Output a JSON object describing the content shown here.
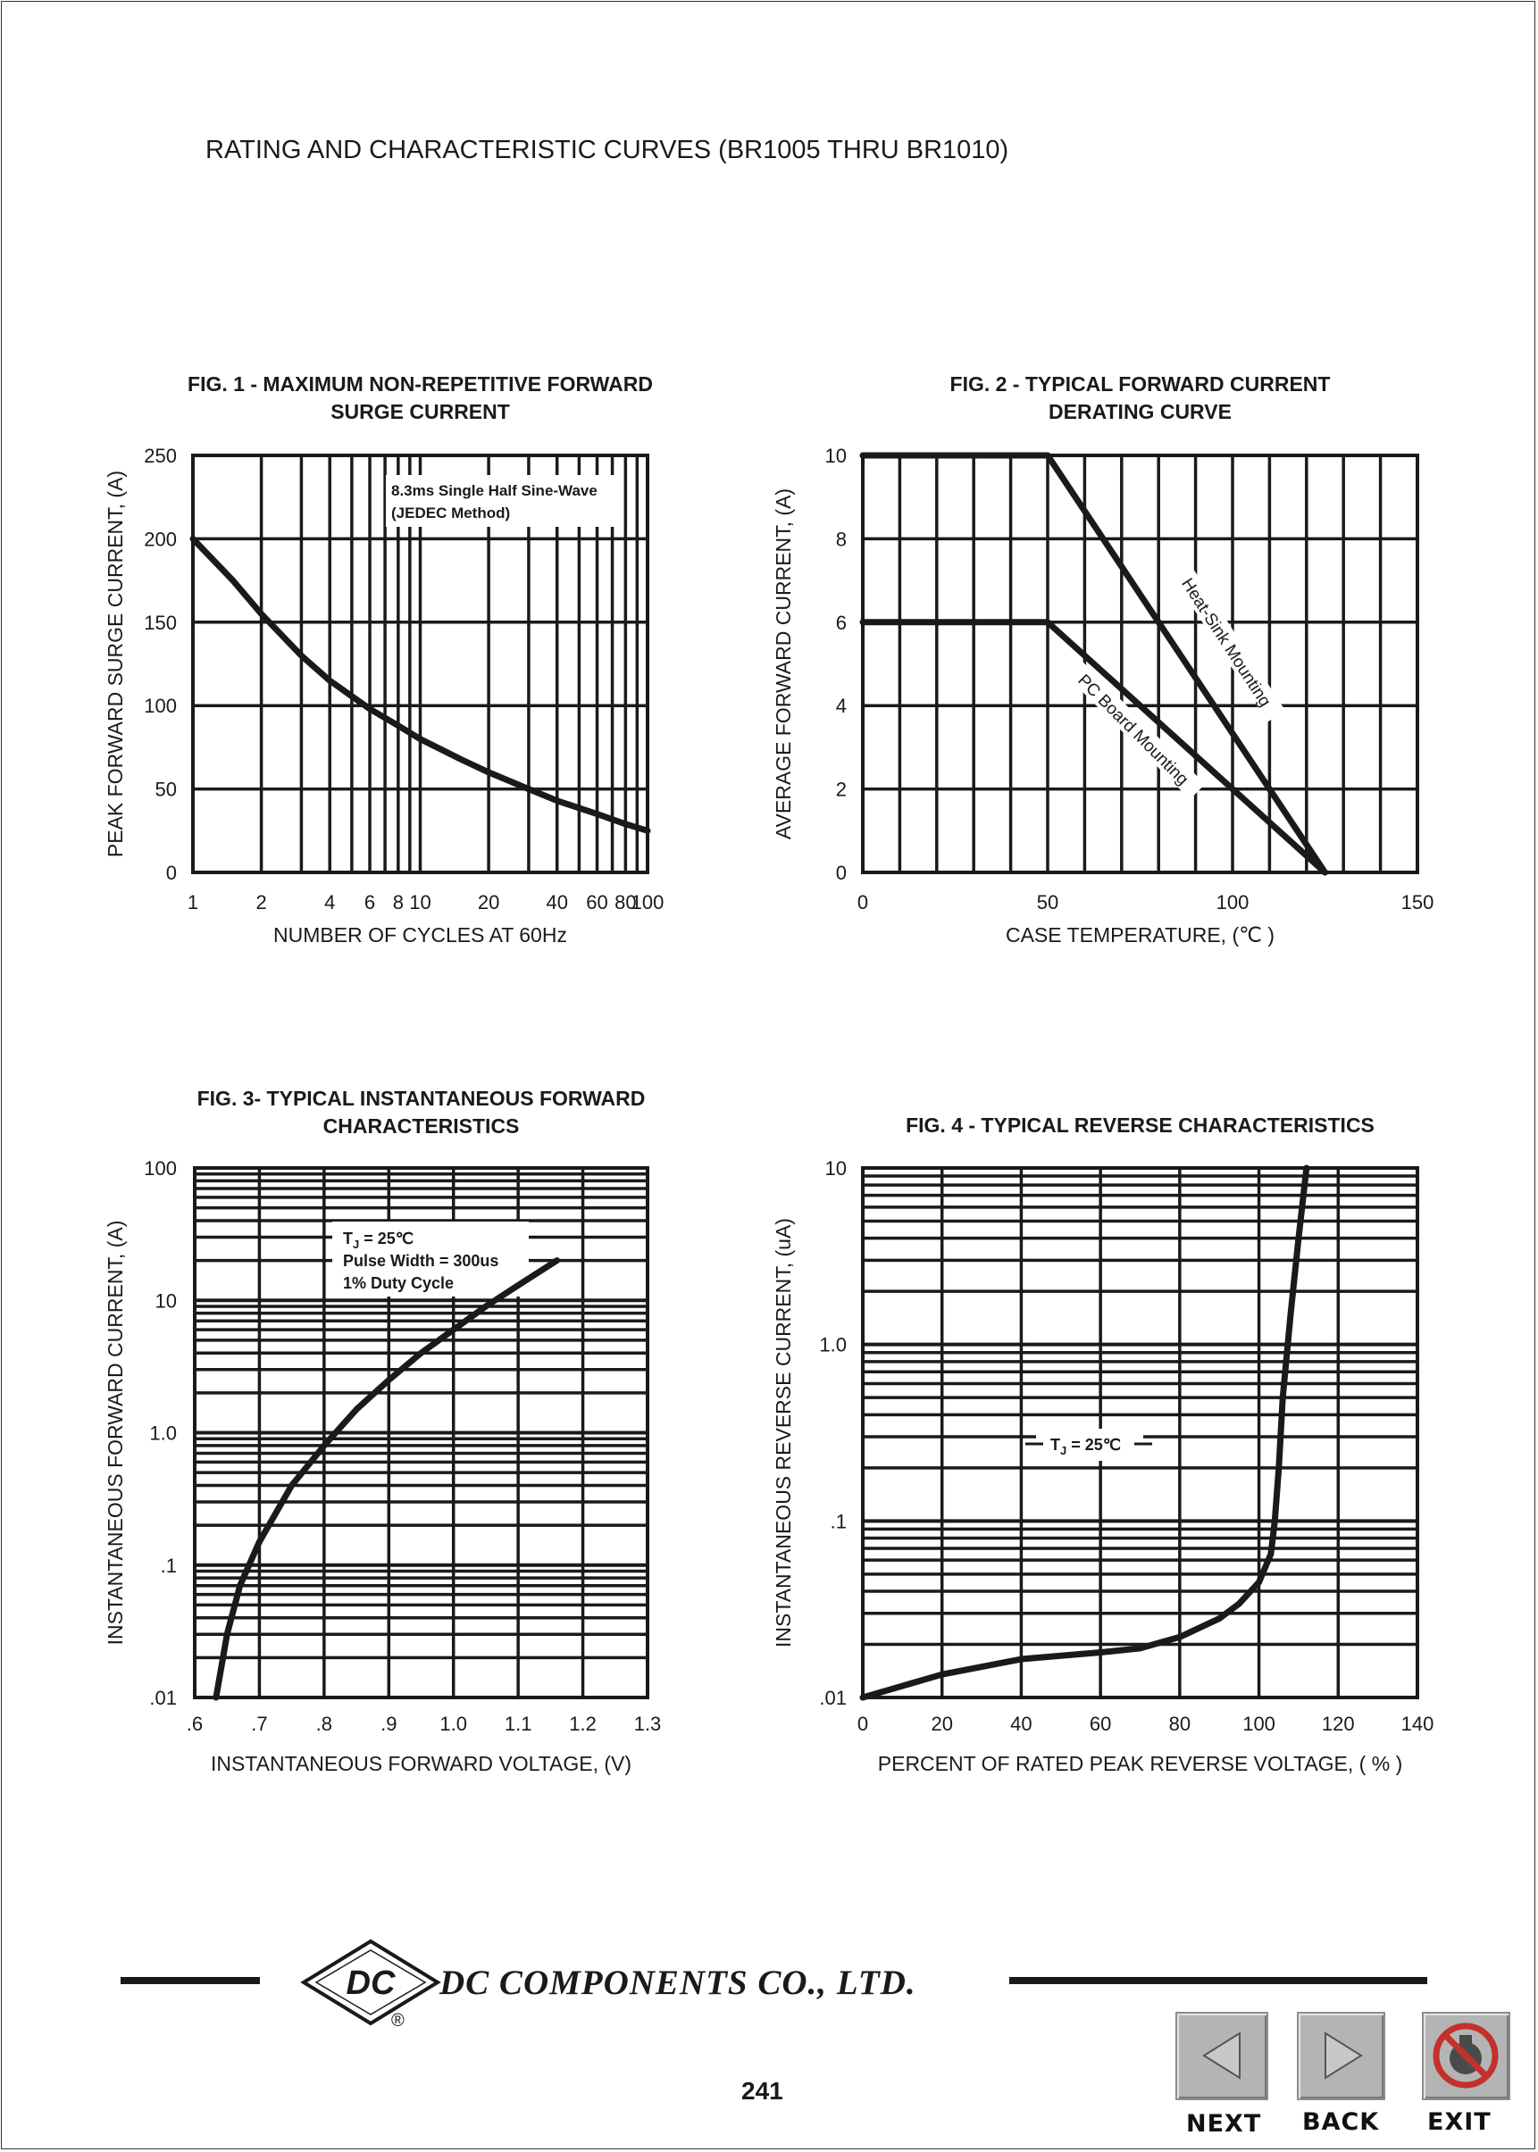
{
  "page": {
    "header": "RATING AND CHARACTERISTIC CURVES (BR1005 THRU BR1010)",
    "company": "DC COMPONENTS CO., LTD.",
    "logo_text": "DC",
    "registered_mark": "®",
    "page_number": "241"
  },
  "nav": {
    "next_label": "NEXT",
    "back_label": "BACK",
    "exit_label": "EXIT"
  },
  "colors": {
    "ink": "#1a1a1a",
    "button_face": "#b4b4b4",
    "exit_red": "#c4302b"
  },
  "icons": {
    "next": "left-triangle-icon",
    "back": "right-triangle-icon",
    "exit": "prohibited-icon"
  },
  "chart_data": [
    {
      "id": "fig1",
      "type": "line",
      "title": [
        "FIG. 1 - MAXIMUM NON-REPETITIVE FORWARD",
        "SURGE CURRENT"
      ],
      "xlabel": "NUMBER OF CYCLES AT 60Hz",
      "ylabel": "PEAK FORWARD SURGE CURRENT, (A)",
      "xscale": "log",
      "yscale": "linear",
      "xlim": [
        1,
        100
      ],
      "ylim": [
        0,
        250
      ],
      "xticks": [
        1,
        2,
        4,
        6,
        8,
        10,
        20,
        40,
        60,
        80,
        100
      ],
      "xtick_labels": [
        "1",
        "2",
        "4",
        "6",
        "8",
        "10",
        "20",
        "40",
        "60",
        "80",
        "100"
      ],
      "yticks": [
        0,
        50,
        100,
        150,
        200,
        250
      ],
      "ytick_labels": [
        "0",
        "50",
        "100",
        "150",
        "200",
        "250"
      ],
      "grid": true,
      "annotation": [
        "8.3ms Single Half Sine-Wave",
        "(JEDEC Method)"
      ],
      "series": [
        {
          "x": [
            1,
            1.5,
            2,
            3,
            4,
            6,
            8,
            10,
            15,
            20,
            30,
            40,
            60,
            80,
            100
          ],
          "y": [
            200,
            175,
            155,
            130,
            115,
            98,
            88,
            80,
            68,
            60,
            50,
            43,
            35,
            29,
            25
          ]
        }
      ]
    },
    {
      "id": "fig2",
      "type": "line",
      "title": [
        "FIG. 2 - TYPICAL FORWARD CURRENT",
        "DERATING CURVE"
      ],
      "xlabel": "CASE TEMPERATURE, (℃ )",
      "ylabel": "AVERAGE FORWARD  CURRENT, (A)",
      "xscale": "linear",
      "yscale": "linear",
      "xlim": [
        0,
        150
      ],
      "ylim": [
        0,
        10
      ],
      "xticks": [
        0,
        50,
        100,
        150
      ],
      "xtick_labels": [
        "0",
        "50",
        "100",
        "150"
      ],
      "yticks": [
        0,
        2,
        4,
        6,
        8,
        10
      ],
      "ytick_labels": [
        "0",
        "2",
        "4",
        "6",
        "8",
        "10"
      ],
      "grid": true,
      "series": [
        {
          "name": "Heat-Sink Mounting",
          "x": [
            0,
            50,
            125
          ],
          "y": [
            10,
            10,
            0
          ]
        },
        {
          "name": "PC Board Mounting",
          "x": [
            0,
            50,
            125
          ],
          "y": [
            6,
            6,
            0
          ]
        }
      ]
    },
    {
      "id": "fig3",
      "type": "line",
      "title": [
        "FIG. 3- TYPICAL INSTANTANEOUS FORWARD",
        "CHARACTERISTICS"
      ],
      "xlabel": "INSTANTANEOUS FORWARD VOLTAGE, (V)",
      "ylabel": "INSTANTANEOUS FORWARD CURRENT, (A)",
      "xscale": "linear",
      "yscale": "log",
      "xlim": [
        0.6,
        1.3
      ],
      "ylim": [
        0.01,
        100
      ],
      "xticks": [
        0.6,
        0.7,
        0.8,
        0.9,
        1.0,
        1.1,
        1.2,
        1.3
      ],
      "xtick_labels": [
        ".6",
        ".7",
        ".8",
        ".9",
        "1.0",
        "1.1",
        "1.2",
        "1.3"
      ],
      "yticks": [
        0.01,
        0.1,
        1,
        10,
        100
      ],
      "ytick_labels": [
        ".01",
        ".1",
        "1.0",
        "10",
        "100"
      ],
      "grid": true,
      "annotation": [
        "T",
        "J",
        " = 25℃",
        "Pulse Width = 300us",
        "1% Duty Cycle"
      ],
      "series": [
        {
          "x": [
            0.633,
            0.65,
            0.67,
            0.7,
            0.75,
            0.8,
            0.85,
            0.9,
            0.95,
            1.0,
            1.05,
            1.1,
            1.16
          ],
          "y": [
            0.01,
            0.03,
            0.07,
            0.15,
            0.4,
            0.8,
            1.5,
            2.5,
            4.0,
            6.0,
            9.0,
            13.0,
            20.0
          ]
        }
      ]
    },
    {
      "id": "fig4",
      "type": "line",
      "title": [
        "FIG. 4 - TYPICAL REVERSE CHARACTERISTICS"
      ],
      "xlabel": "PERCENT OF RATED PEAK REVERSE VOLTAGE, ( % )",
      "ylabel": "INSTANTANEOUS REVERSE CURRENT, (uA)",
      "xscale": "linear",
      "yscale": "log",
      "xlim": [
        0,
        140
      ],
      "ylim": [
        0.01,
        10
      ],
      "xticks": [
        0,
        20,
        40,
        60,
        80,
        100,
        120,
        140
      ],
      "xtick_labels": [
        "0",
        "20",
        "40",
        "60",
        "80",
        "100",
        "120",
        "140"
      ],
      "yticks": [
        0.01,
        0.1,
        1,
        10
      ],
      "ytick_labels": [
        ".01",
        ".1",
        "1.0",
        "10"
      ],
      "grid": true,
      "annotation": [
        "T",
        "J",
        " = 25℃"
      ],
      "series": [
        {
          "x": [
            0,
            20,
            40,
            60,
            70,
            80,
            90,
            95,
            100,
            103,
            104,
            105,
            106,
            108,
            110,
            112
          ],
          "y": [
            0.01,
            0.0135,
            0.0165,
            0.018,
            0.019,
            0.022,
            0.028,
            0.034,
            0.045,
            0.065,
            0.1,
            0.2,
            0.5,
            1.5,
            4.0,
            10
          ]
        }
      ]
    }
  ]
}
